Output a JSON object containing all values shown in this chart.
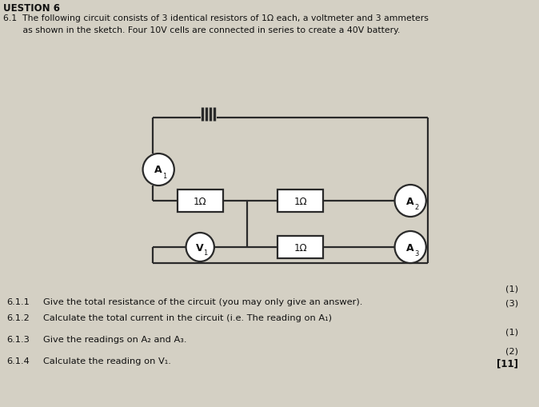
{
  "bg_color": "#d4d0c4",
  "title_line1": "UESTION 6",
  "title_line2": "6.1  The following circuit consists of 3 identical resistors of 1Ω each, a voltmeter and 3 ammeters",
  "title_line3": "       as shown in the sketch. Four 10V cells are connected in series to create a 40V battery.",
  "q611_num": "6.1.1",
  "q611_text": "Give the total resistance of the circuit (you may only give an answer).",
  "q611_marks": "(1)",
  "q612_num": "6.1.2",
  "q612_text": "Calculate the total current in the circuit (i.e. The reading on A₁)",
  "q612_marks": "(3)",
  "q613_num": "6.1.3",
  "q613_text": "Give the readings on A₂ and A₃.",
  "q613_marks": "(1)",
  "q614_num": "6.1.4",
  "q614_text": "Calculate the reading on V₁.",
  "q614_marks": "(2)",
  "total_marks": "[11]",
  "wire_color": "#2a2a2a",
  "line_width": 1.6,
  "component_bg": "#ffffff"
}
